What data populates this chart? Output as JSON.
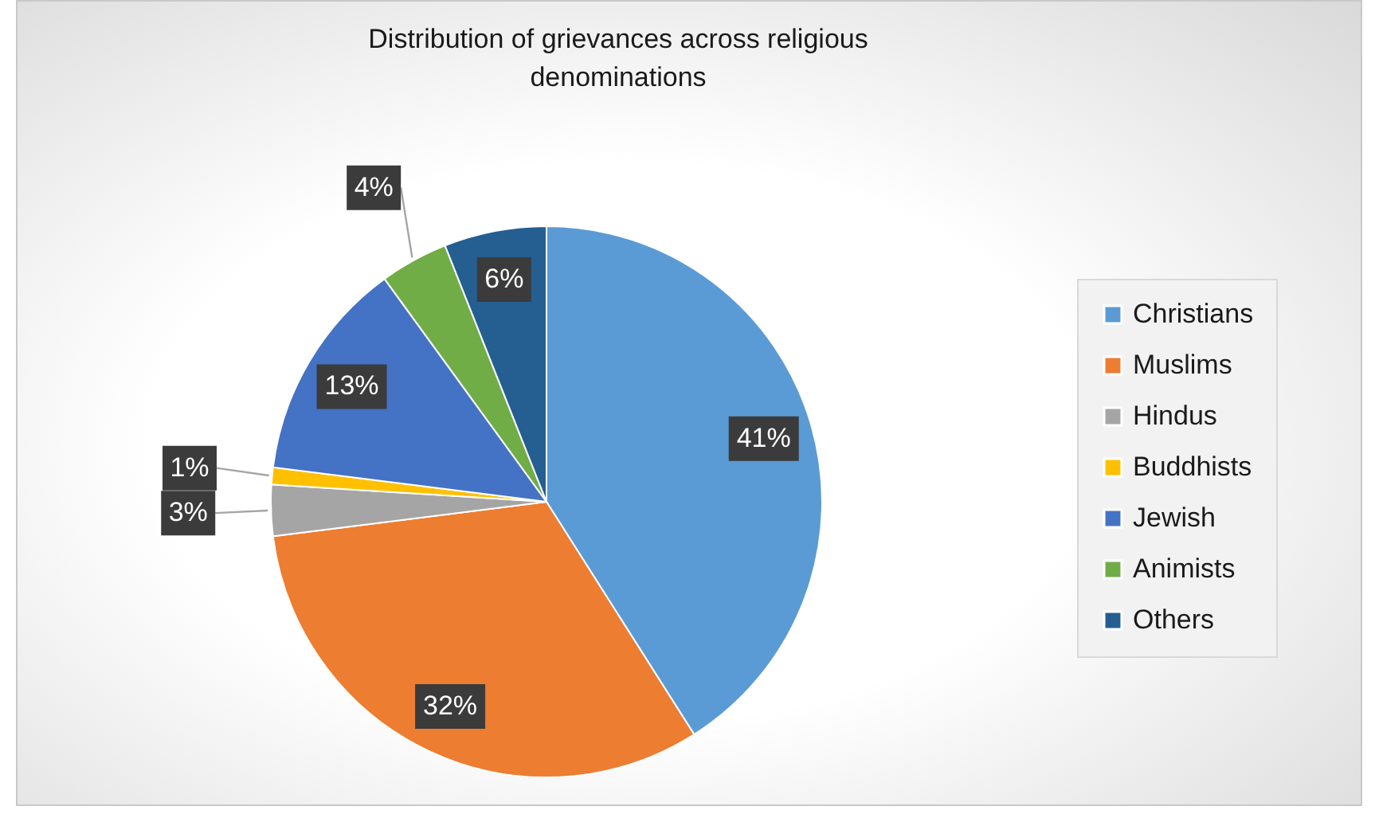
{
  "chart_data": {
    "type": "pie",
    "title": [
      "Distribution of grievances across religious",
      "denominations"
    ],
    "categories": [
      "Christians",
      "Muslims",
      "Hindus",
      "Buddhists",
      "Jewish",
      "Animists",
      "Others"
    ],
    "values": [
      41,
      32,
      3,
      1,
      13,
      4,
      6
    ],
    "colors": [
      "#5b9bd5",
      "#ed7d31",
      "#a5a5a5",
      "#ffc000",
      "#4472c4",
      "#70ad47",
      "#255e91"
    ],
    "value_labels": [
      "41%",
      "32%",
      "3%",
      "1%",
      "13%",
      "4%",
      "6%"
    ],
    "legend": "right"
  }
}
